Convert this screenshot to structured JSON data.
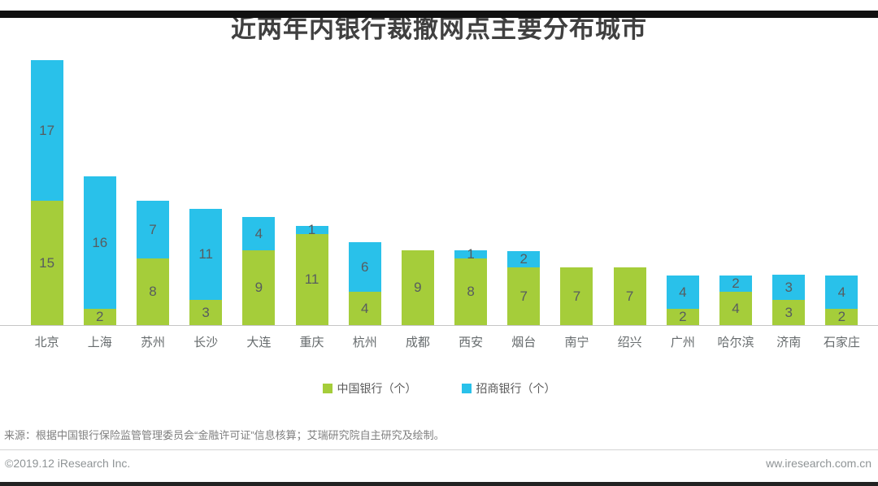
{
  "title": "近两年内银行裁撤网点主要分布城市",
  "chart_data": {
    "type": "bar",
    "stacked": true,
    "orientation": "vertical",
    "title": "近两年内银行裁撤网点主要分布城市",
    "categories": [
      "北京",
      "上海",
      "苏州",
      "长沙",
      "大连",
      "重庆",
      "杭州",
      "成都",
      "西安",
      "烟台",
      "南宁",
      "绍兴",
      "广州",
      "哈尔滨",
      "济南",
      "石家庄"
    ],
    "series": [
      {
        "name": "中国银行（个）",
        "color": "#a5cd3a",
        "values": [
          15,
          2,
          8,
          3,
          9,
          11,
          4,
          9,
          8,
          7,
          7,
          7,
          2,
          4,
          3,
          2
        ]
      },
      {
        "name": "招商银行（个）",
        "color": "#29c1ea",
        "values": [
          17,
          16,
          7,
          11,
          4,
          1,
          6,
          0,
          1,
          2,
          0,
          0,
          4,
          2,
          3,
          4
        ]
      }
    ],
    "xlabel": "",
    "ylabel": "",
    "ylim": [
      0,
      33
    ],
    "grid": false,
    "value_labels": "inside segments, zero values not labeled",
    "legend_position": "bottom-center"
  },
  "footer": {
    "source": "来源：根据中国银行保险监管管理委员会“金融许可证”信息核算；艾瑞研究院自主研究及绘制。",
    "copyright": "©2019.12 iResearch Inc.",
    "website": "ww.iresearch.com.cn"
  },
  "colors": {
    "series_boc": "#a5cd3a",
    "series_cmb": "#29c1ea",
    "title_text": "#404040",
    "axis_line": "#c6c6c6",
    "top_bar": "#111111",
    "bottom_bar": "#222222"
  }
}
